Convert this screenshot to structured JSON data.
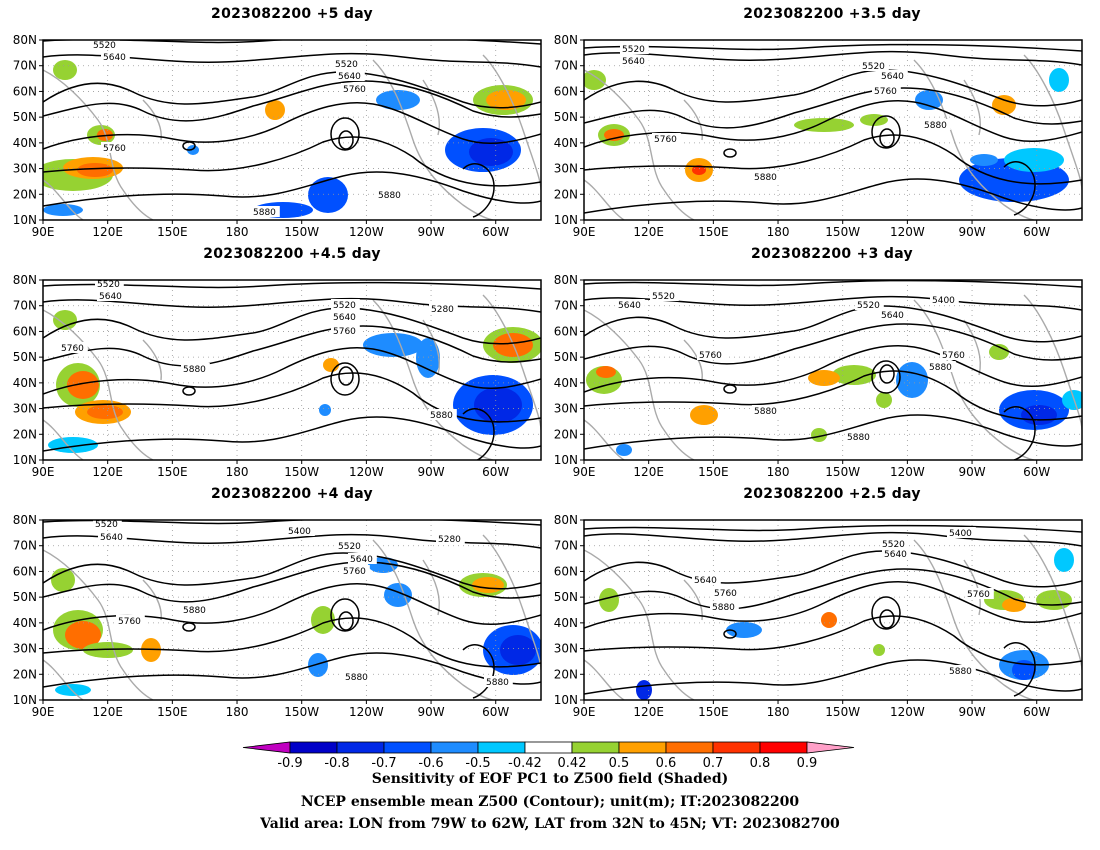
{
  "panels": [
    {
      "title": "2023082200  +5 day",
      "contour_labels": [
        "5520",
        "5640",
        "5520",
        "5640",
        "5760",
        "5760",
        "5880",
        "5880"
      ]
    },
    {
      "title": "2023082200  +3.5 day",
      "contour_labels": [
        "5520",
        "5640",
        "5520",
        "5640",
        "5760",
        "5760",
        "5880",
        "5880"
      ]
    },
    {
      "title": "2023082200  +4.5 day",
      "contour_labels": [
        "5520",
        "5640",
        "5520",
        "5640",
        "5760",
        "5280",
        "5760",
        "5880",
        "5880"
      ]
    },
    {
      "title": "2023082200  +3 day",
      "contour_labels": [
        "5640",
        "5520",
        "5520",
        "5400",
        "5640",
        "5760",
        "5760",
        "5880",
        "5880",
        "5880"
      ]
    },
    {
      "title": "2023082200  +4 day",
      "contour_labels": [
        "5520",
        "5640",
        "5400",
        "5520",
        "5280",
        "5640",
        "5760",
        "5880",
        "5760",
        "5880",
        "5880"
      ]
    },
    {
      "title": "2023082200  +2.5 day",
      "contour_labels": [
        "5520",
        "5400",
        "5640",
        "5640",
        "5760",
        "5880",
        "5760",
        "5880"
      ]
    }
  ],
  "axes": {
    "lat_labels": [
      "80N",
      "70N",
      "60N",
      "50N",
      "40N",
      "30N",
      "20N",
      "10N"
    ],
    "lon_labels": [
      "90E",
      "120E",
      "150E",
      "180",
      "150W",
      "120W",
      "90W",
      "60W"
    ]
  },
  "colorbar": {
    "tick_labels": [
      "-0.9",
      "-0.8",
      "-0.7",
      "-0.6",
      "-0.5",
      "-0.42",
      "0.42",
      "0.5",
      "0.6",
      "0.7",
      "0.8",
      "0.9"
    ],
    "colors": [
      "#c000c0",
      "#0000c8",
      "#0028e6",
      "#0050ff",
      "#1e8cff",
      "#00c8ff",
      "#ffffff",
      "#96d232",
      "#ffa000",
      "#ff6e00",
      "#ff3200",
      "#ff0000",
      "#ffa0c8"
    ]
  },
  "caption": {
    "line1": "Sensitivity of EOF PC1 to Z500 field (Shaded)",
    "line2": "NCEP ensemble mean Z500 (Contour); unit(m); IT:2023082200",
    "line3": "Valid area: LON from 79W to 62W, LAT from 32N to 45N; VT: 2023082700"
  }
}
